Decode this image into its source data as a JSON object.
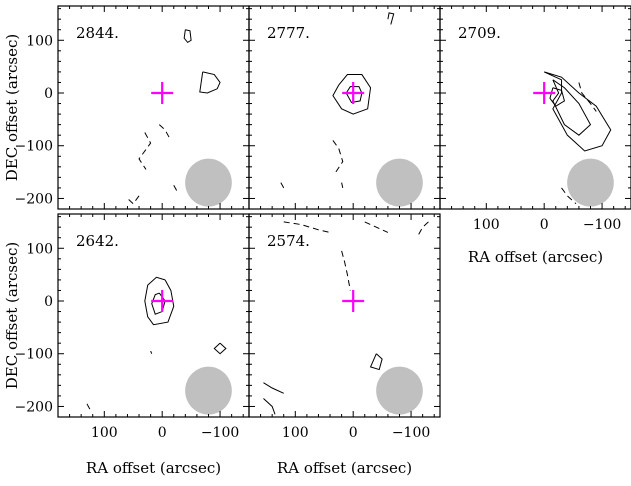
{
  "chart_data": {
    "type": "contour-map",
    "xlabel": "RA offset (arcsec)",
    "ylabel": "DEC offset (arcsec)",
    "xlim": [
      180,
      -150
    ],
    "ylim": [
      -220,
      165
    ],
    "x_ticks": [
      100,
      0,
      -100
    ],
    "x_tick_labels": [
      "100",
      "0",
      "−100"
    ],
    "y_ticks": [
      100,
      0,
      -100,
      -200
    ],
    "y_tick_labels": [
      "100",
      "0",
      "−100",
      "−200"
    ],
    "marker": {
      "ra": 0,
      "dec": 0,
      "color": "#ff00ff",
      "shape": "cross"
    },
    "beam": {
      "ra": -80,
      "dec": -170,
      "major": 70,
      "minor": 52,
      "color": "#c0c0c0"
    },
    "panels": [
      {
        "label": "2844.",
        "contours_pos": [
          [
            [
              -40,
              120
            ],
            [
              -48,
              118
            ],
            [
              -50,
              100
            ],
            [
              -44,
              96
            ],
            [
              -38,
              104
            ],
            [
              -40,
              120
            ]
          ],
          [
            [
              -70,
              40
            ],
            [
              -90,
              35
            ],
            [
              -100,
              20
            ],
            [
              -95,
              8
            ],
            [
              -78,
              0
            ],
            [
              -65,
              2
            ],
            [
              -70,
              40
            ]
          ]
        ],
        "contours_neg": [
          [
            [
              30,
              -75
            ],
            [
              20,
              -95
            ],
            [
              40,
              -125
            ],
            [
              28,
              -145
            ]
          ],
          [
            [
              5,
              -60
            ],
            [
              -5,
              -70
            ],
            [
              -15,
              -90
            ]
          ],
          [
            [
              40,
              -195
            ],
            [
              50,
              -210
            ],
            [
              60,
              -200
            ]
          ],
          [
            [
              -20,
              -175
            ],
            [
              -25,
              -185
            ]
          ]
        ]
      },
      {
        "label": "2777.",
        "contours_pos": [
          [
            [
              -65,
              130
            ],
            [
              -70,
              150
            ],
            [
              -62,
              152
            ],
            [
              -60,
              140
            ]
          ],
          [
            [
              25,
              15
            ],
            [
              10,
              35
            ],
            [
              -15,
              35
            ],
            [
              -30,
              10
            ],
            [
              -25,
              -30
            ],
            [
              0,
              -40
            ],
            [
              20,
              -30
            ],
            [
              35,
              -5
            ],
            [
              25,
              15
            ]
          ],
          [
            [
              12,
              0
            ],
            [
              5,
              12
            ],
            [
              -10,
              12
            ],
            [
              -15,
              0
            ],
            [
              -12,
              -15
            ],
            [
              3,
              -18
            ],
            [
              12,
              0
            ]
          ],
          [
            [
              20,
              -170
            ],
            [
              18,
              -180
            ]
          ]
        ],
        "contours_neg": [
          [
            [
              35,
              -90
            ],
            [
              25,
              -105
            ],
            [
              18,
              -130
            ],
            [
              30,
              -150
            ]
          ],
          [
            [
              125,
              -170
            ],
            [
              120,
              -180
            ]
          ]
        ]
      },
      {
        "label": "2709.",
        "contours_pos": [
          [
            [
              0,
              40
            ],
            [
              -30,
              25
            ],
            [
              -30,
              0
            ],
            [
              -15,
              -30
            ],
            [
              -40,
              -80
            ],
            [
              -70,
              -110
            ],
            [
              -100,
              -100
            ],
            [
              -115,
              -70
            ],
            [
              -90,
              -25
            ],
            [
              -60,
              0
            ],
            [
              -30,
              30
            ],
            [
              0,
              40
            ]
          ],
          [
            [
              -15,
              25
            ],
            [
              -25,
              0
            ],
            [
              -15,
              -15
            ],
            [
              -35,
              -60
            ],
            [
              -60,
              -80
            ],
            [
              -80,
              -60
            ],
            [
              -60,
              -20
            ],
            [
              -35,
              10
            ],
            [
              -15,
              25
            ]
          ],
          [
            [
              -15,
              10
            ],
            [
              -10,
              -10
            ],
            [
              -20,
              -25
            ],
            [
              -35,
              -15
            ],
            [
              -30,
              5
            ],
            [
              -15,
              10
            ]
          ]
        ],
        "contours_neg": [
          [
            [
              -60,
              20
            ],
            [
              -65,
              0
            ],
            [
              -80,
              -20
            ],
            [
              -90,
              -35
            ]
          ],
          [
            [
              -30,
              -180
            ],
            [
              -40,
              -195
            ],
            [
              -55,
              -210
            ]
          ]
        ]
      },
      {
        "label": "2642.",
        "contours_pos": [
          [
            [
              -5,
              40
            ],
            [
              -15,
              20
            ],
            [
              -20,
              -10
            ],
            [
              -10,
              -40
            ],
            [
              15,
              -45
            ],
            [
              25,
              -30
            ],
            [
              30,
              0
            ],
            [
              25,
              30
            ],
            [
              10,
              45
            ],
            [
              -5,
              40
            ]
          ],
          [
            [
              5,
              15
            ],
            [
              -5,
              0
            ],
            [
              0,
              -20
            ],
            [
              12,
              -25
            ],
            [
              18,
              -5
            ],
            [
              12,
              12
            ],
            [
              5,
              15
            ]
          ],
          [
            [
              -100,
              -80
            ],
            [
              -110,
              -90
            ],
            [
              -100,
              -100
            ],
            [
              -90,
              -90
            ],
            [
              -100,
              -80
            ]
          ],
          [
            [
              20,
              -95
            ],
            [
              18,
              -100
            ]
          ]
        ],
        "contours_neg": [
          [
            [
              130,
              -195
            ],
            [
              125,
              -205
            ]
          ]
        ]
      },
      {
        "label": "2574.",
        "contours_pos": [
          [
            [
              -40,
              -100
            ],
            [
              -50,
              -110
            ],
            [
              -45,
              -130
            ],
            [
              -30,
              -125
            ],
            [
              -40,
              -100
            ]
          ],
          [
            [
              155,
              -155
            ],
            [
              140,
              -165
            ],
            [
              120,
              -175
            ]
          ],
          [
            [
              155,
              -185
            ],
            [
              140,
              -200
            ],
            [
              135,
              -215
            ]
          ]
        ],
        "contours_neg": [
          [
            [
              120,
              150
            ],
            [
              90,
              145
            ],
            [
              60,
              135
            ],
            [
              40,
              130
            ]
          ],
          [
            [
              -20,
              150
            ],
            [
              -40,
              140
            ],
            [
              -60,
              130
            ]
          ],
          [
            [
              20,
              95
            ],
            [
              15,
              75
            ],
            [
              10,
              50
            ],
            [
              5,
              20
            ]
          ],
          [
            [
              -130,
              150
            ],
            [
              -120,
              140
            ],
            [
              -110,
              120
            ]
          ]
        ]
      }
    ]
  }
}
